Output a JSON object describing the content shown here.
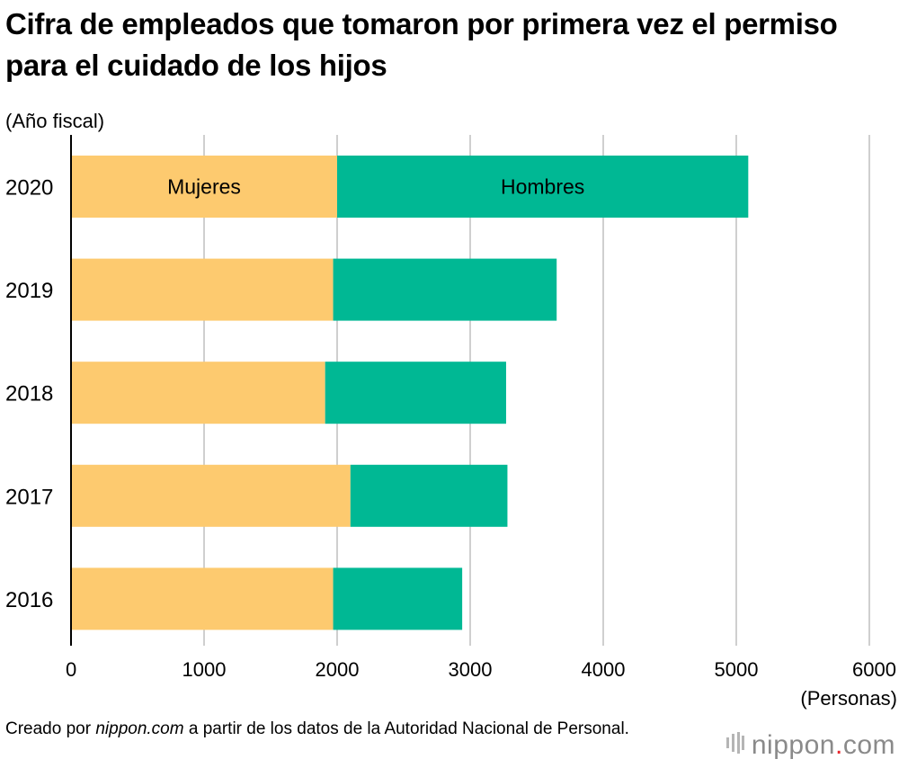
{
  "title": "Cifra de empleados que tomaron por primera vez el permiso para el cuidado de los hijos",
  "y_unit_label": "(Año fiscal)",
  "x_unit_label": "(Personas)",
  "source": {
    "prefix": "Creado por ",
    "site": "nippon.com",
    "suffix": " a partir de los datos de la Autoridad Nacional de Personal."
  },
  "logo": {
    "name": "nippon",
    "dot": ".",
    "tld": "com",
    "icon": "nippon-bars-icon"
  },
  "colors": {
    "women": "#fdca6f",
    "men": "#00b894",
    "grid": "#cfcfcf",
    "axis": "#000000"
  },
  "chart_data": {
    "type": "bar",
    "orientation": "horizontal",
    "stacked": true,
    "categories": [
      "2020",
      "2019",
      "2018",
      "2017",
      "2016"
    ],
    "series": [
      {
        "name": "Mujeres",
        "values": [
          2000,
          1970,
          1910,
          2100,
          1970
        ]
      },
      {
        "name": "Hombres",
        "values": [
          3090,
          1680,
          1360,
          1180,
          970
        ]
      }
    ],
    "xlim": [
      0,
      6000
    ],
    "xticks": [
      "0",
      "1000",
      "2000",
      "3000",
      "4000",
      "5000",
      "6000"
    ],
    "xlabel": "(Personas)",
    "ylabel": "(Año fiscal)",
    "grid": true,
    "legend": "inside-first-bar"
  }
}
